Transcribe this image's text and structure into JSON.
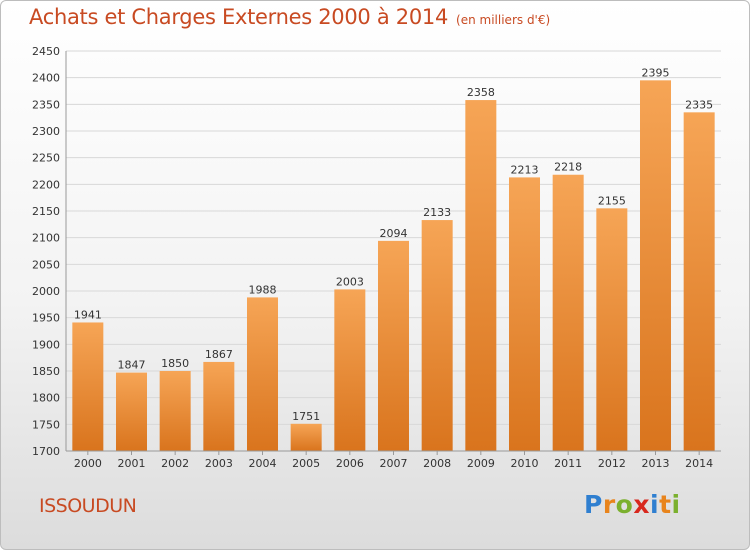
{
  "title": "Achats et Charges Externes 2000 à 2014",
  "subtitle": "(en milliers d'€)",
  "city": "ISSOUDUN",
  "logo": {
    "letters": [
      "P",
      "r",
      "o",
      "x",
      "i",
      "t",
      "i"
    ],
    "colors": [
      "#2f7fd0",
      "#e8841c",
      "#7bb02e",
      "#d8281e",
      "#2f7fd0",
      "#e8841c",
      "#7bb02e"
    ]
  },
  "colors": {
    "title": "#c84a22",
    "bar_light": "#f6a556",
    "bar_dark": "#d9741d",
    "grid": "#d8d8d8"
  },
  "chart_data": {
    "type": "bar",
    "categories": [
      "2000",
      "2001",
      "2002",
      "2003",
      "2004",
      "2005",
      "2006",
      "2007",
      "2008",
      "2009",
      "2010",
      "2011",
      "2012",
      "2013",
      "2014"
    ],
    "values": [
      1941,
      1847,
      1850,
      1867,
      1988,
      1751,
      2003,
      2094,
      2133,
      2358,
      2213,
      2218,
      2155,
      2395,
      2335
    ],
    "ylim": [
      1700,
      2450
    ],
    "yticks": [
      1700,
      1750,
      1800,
      1850,
      1900,
      1950,
      2000,
      2050,
      2100,
      2150,
      2200,
      2250,
      2300,
      2350,
      2400,
      2450
    ],
    "grid": true,
    "data_labels": true
  }
}
